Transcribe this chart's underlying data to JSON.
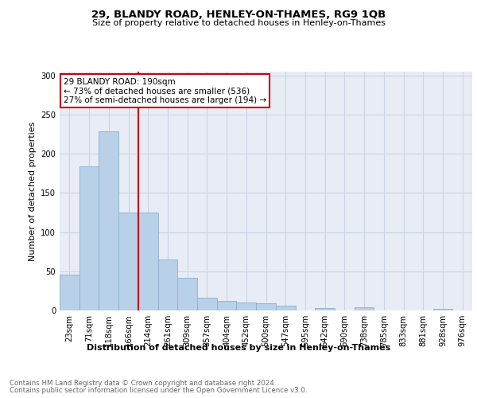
{
  "title1": "29, BLANDY ROAD, HENLEY-ON-THAMES, RG9 1QB",
  "title2": "Size of property relative to detached houses in Henley-on-Thames",
  "xlabel": "Distribution of detached houses by size in Henley-on-Thames",
  "ylabel": "Number of detached properties",
  "footer1": "Contains HM Land Registry data © Crown copyright and database right 2024.",
  "footer2": "Contains public sector information licensed under the Open Government Licence v3.0.",
  "bar_labels": [
    "23sqm",
    "71sqm",
    "118sqm",
    "166sqm",
    "214sqm",
    "261sqm",
    "309sqm",
    "357sqm",
    "404sqm",
    "452sqm",
    "500sqm",
    "547sqm",
    "595sqm",
    "642sqm",
    "690sqm",
    "738sqm",
    "785sqm",
    "833sqm",
    "881sqm",
    "928sqm",
    "976sqm"
  ],
  "bar_values": [
    46,
    184,
    229,
    125,
    125,
    65,
    42,
    16,
    12,
    10,
    9,
    6,
    0,
    3,
    0,
    4,
    0,
    0,
    0,
    2,
    0
  ],
  "bar_color": "#b8d0e8",
  "bar_edge_color": "#8ab0cc",
  "grid_color": "#ccd4e4",
  "bg_color": "#e8ecf4",
  "annotation_line1": "29 BLANDY ROAD: 190sqm",
  "annotation_line2": "← 73% of detached houses are smaller (536)",
  "annotation_line3": "27% of semi-detached houses are larger (194) →",
  "vline_color": "#cc0000",
  "vline_x": 3.5,
  "ylim_max": 305,
  "yticks": [
    0,
    50,
    100,
    150,
    200,
    250,
    300
  ]
}
